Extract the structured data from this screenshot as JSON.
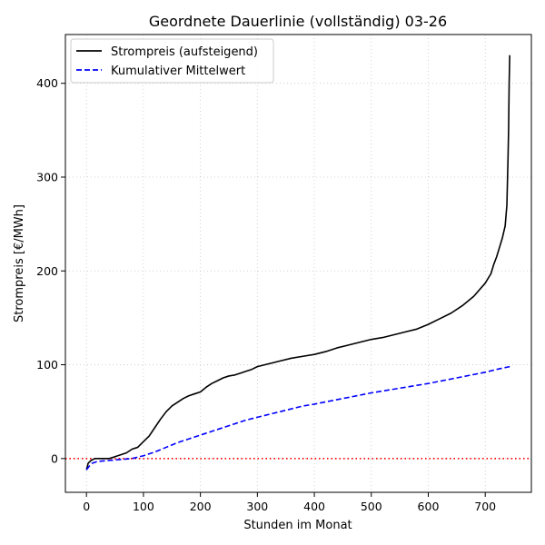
{
  "chart_data": {
    "type": "line",
    "title": "Geordnete Dauerlinie (vollständig) 03-26",
    "xlabel": "Stunden im Monat",
    "ylabel": "Strompreis [€/MWh]",
    "xlim": [
      -37,
      781
    ],
    "ylim": [
      -36,
      452
    ],
    "xticks": [
      0,
      100,
      200,
      300,
      400,
      500,
      600,
      700
    ],
    "yticks": [
      0,
      100,
      200,
      300,
      400
    ],
    "grid": true,
    "legend_position": "top-left",
    "reference_line": {
      "y": 0,
      "color": "#ff0000",
      "style": "dotted"
    },
    "series": [
      {
        "name": "Strompreis (aufsteigend)",
        "color": "#000000",
        "style": "solid",
        "x": [
          0,
          3,
          8,
          15,
          25,
          40,
          55,
          70,
          80,
          90,
          100,
          110,
          120,
          130,
          140,
          150,
          160,
          170,
          180,
          190,
          200,
          210,
          220,
          230,
          240,
          250,
          260,
          270,
          280,
          290,
          300,
          320,
          340,
          360,
          380,
          400,
          420,
          440,
          460,
          480,
          500,
          520,
          540,
          560,
          580,
          600,
          620,
          640,
          660,
          680,
          700,
          710,
          715,
          720,
          725,
          730,
          735,
          738,
          740,
          741,
          742,
          743
        ],
        "y": [
          -12,
          -5,
          -2,
          0,
          0,
          0,
          3,
          6,
          10,
          12,
          18,
          24,
          33,
          42,
          50,
          56,
          60,
          64,
          67,
          69,
          71,
          76,
          80,
          83,
          86,
          88,
          89,
          91,
          93,
          95,
          98,
          101,
          104,
          107,
          109,
          111,
          114,
          118,
          121,
          124,
          127,
          129,
          132,
          135,
          138,
          143,
          149,
          155,
          163,
          173,
          187,
          197,
          207,
          215,
          225,
          235,
          248,
          270,
          320,
          350,
          400,
          430
        ]
      },
      {
        "name": "Kumulativer Mittelwert",
        "color": "#0000ff",
        "style": "dashed",
        "x": [
          0,
          5,
          10,
          20,
          40,
          60,
          80,
          100,
          120,
          140,
          160,
          180,
          200,
          220,
          240,
          260,
          280,
          300,
          320,
          340,
          360,
          380,
          400,
          450,
          500,
          550,
          600,
          650,
          700,
          720,
          743
        ],
        "y": [
          -12,
          -8,
          -5,
          -3,
          -2,
          -1,
          0,
          3,
          7,
          12,
          17,
          21,
          25,
          29,
          33,
          37,
          41,
          44,
          47,
          50,
          53,
          56,
          58,
          64,
          70,
          75,
          80,
          86,
          92,
          95,
          98
        ]
      }
    ]
  }
}
